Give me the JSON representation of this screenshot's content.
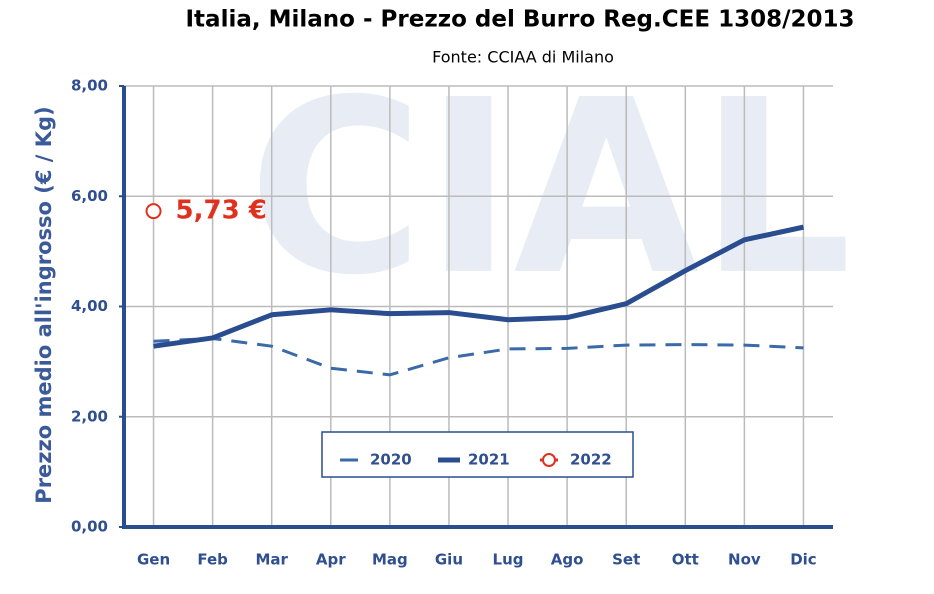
{
  "chart_data": {
    "type": "line",
    "title": "Italia, Milano - Prezzo del Burro Reg.CEE 1308/2013",
    "subtitle": "Fonte: CCIAA di Milano",
    "watermark": "CIAL",
    "y_label": "Prezzo medio all'ingrosso (€ / Kg)",
    "categories": [
      "Gen",
      "Feb",
      "Mar",
      "Apr",
      "Mag",
      "Giu",
      "Lug",
      "Ago",
      "Set",
      "Ott",
      "Nov",
      "Dic"
    ],
    "series": [
      {
        "name": "2020",
        "color": "#3a6aa8",
        "dash": true,
        "values": [
          3.37,
          3.42,
          3.28,
          2.88,
          2.76,
          3.07,
          3.23,
          3.24,
          3.3,
          3.31,
          3.3,
          3.25
        ]
      },
      {
        "name": "2021",
        "color": "#2a4d8f",
        "dash": false,
        "values": [
          3.28,
          3.43,
          3.85,
          3.94,
          3.87,
          3.89,
          3.76,
          3.8,
          4.05,
          4.65,
          5.21,
          5.44
        ]
      },
      {
        "name": "2022",
        "color": "#e0301e",
        "marker": true,
        "values": [
          5.73,
          null,
          null,
          null,
          null,
          null,
          null,
          null,
          null,
          null,
          null,
          null
        ],
        "value_labels": [
          "5,73 €",
          null,
          null,
          null,
          null,
          null,
          null,
          null,
          null,
          null,
          null,
          null
        ]
      }
    ],
    "ylim": [
      0,
      8
    ],
    "yticks": [
      {
        "value": 0,
        "label": "0,00"
      },
      {
        "value": 2,
        "label": "2,00"
      },
      {
        "value": 4,
        "label": "4,00"
      },
      {
        "value": 6,
        "label": "6,00"
      },
      {
        "value": 8,
        "label": "8,00"
      }
    ],
    "grid": true
  }
}
